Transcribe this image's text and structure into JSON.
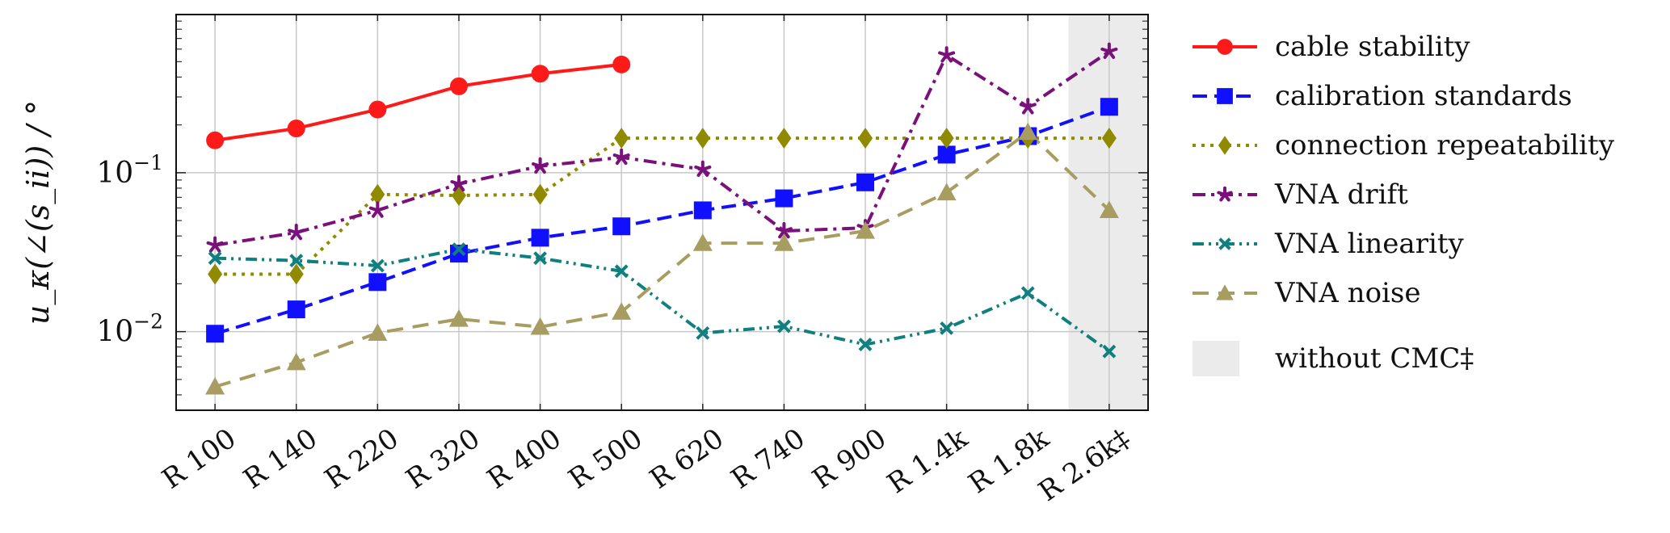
{
  "chart_data": {
    "type": "line",
    "title": "",
    "ylabel": "u_κ(∠(s_ii)) / °",
    "xlabel": "",
    "yscale": "log",
    "ylim": [
      0.0032,
      0.99
    ],
    "y_ticks": [
      {
        "value": 0.01,
        "base": "10",
        "exp": "−2"
      },
      {
        "value": 0.1,
        "base": "10",
        "exp": "−1"
      }
    ],
    "grid": true,
    "legend_position": "right",
    "categories": [
      "R 100",
      "R 140",
      "R 220",
      "R 320",
      "R 400",
      "R 500",
      "R 620",
      "R 740",
      "R 900",
      "R 1.4k",
      "R 1.8k",
      "R 2.6k‡"
    ],
    "shaded_region": {
      "category": "R 2.6k‡",
      "label": "without CMC‡",
      "color": "#ebebeb"
    },
    "series": [
      {
        "name": "cable stability",
        "color": "#ff1a1a",
        "marker": "circle",
        "dash": "solid",
        "values": [
          0.16,
          0.19,
          0.25,
          0.35,
          0.42,
          0.48,
          null,
          null,
          null,
          null,
          null,
          null
        ]
      },
      {
        "name": "calibration standards",
        "color": "#1010ff",
        "marker": "square",
        "dash": "dashed",
        "values": [
          0.0097,
          0.0138,
          0.0205,
          0.031,
          0.039,
          0.046,
          0.058,
          0.069,
          0.087,
          0.13,
          0.17,
          0.26
        ]
      },
      {
        "name": "connection repeatability",
        "color": "#8f8a00",
        "marker": "diamond",
        "dash": "dotted",
        "values": [
          0.023,
          0.023,
          0.073,
          0.072,
          0.073,
          0.165,
          0.165,
          0.165,
          0.165,
          0.165,
          0.165,
          0.165
        ]
      },
      {
        "name": "VNA drift",
        "color": "#7a117a",
        "marker": "star",
        "dash": "dashdot",
        "values": [
          0.035,
          0.042,
          0.058,
          0.085,
          0.11,
          0.125,
          0.105,
          0.043,
          0.045,
          0.55,
          0.26,
          0.58
        ]
      },
      {
        "name": "VNA linearity",
        "color": "#0f7f7f",
        "marker": "x",
        "dash": "dashdotdot",
        "values": [
          0.029,
          0.028,
          0.026,
          0.033,
          0.029,
          0.024,
          0.0098,
          0.0108,
          0.0083,
          0.0105,
          0.0175,
          0.0075
        ]
      },
      {
        "name": "VNA noise",
        "color": "#a89d60",
        "marker": "triangle",
        "dash": "longdash",
        "values": [
          0.0045,
          0.0064,
          0.0098,
          0.012,
          0.0107,
          0.0133,
          0.036,
          0.036,
          0.043,
          0.075,
          0.18,
          0.058
        ]
      }
    ]
  }
}
